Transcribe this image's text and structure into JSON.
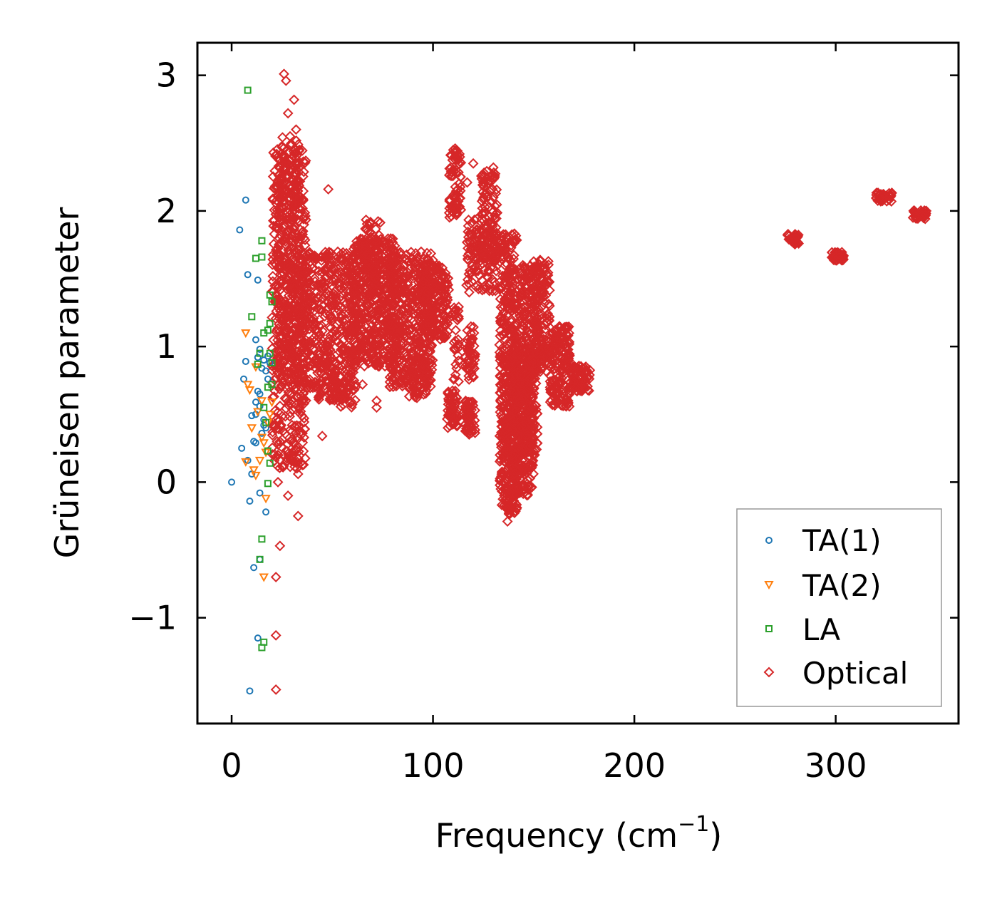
{
  "colors": {
    "ta1": "#1f77b4",
    "ta2": "#ff7f0e",
    "la": "#2ca02c",
    "optical": "#d62728",
    "axis": "#000000",
    "legend_border": "#999999"
  },
  "chart_data": {
    "type": "scatter",
    "title": "",
    "xlabel_main": "Frequency (cm",
    "xlabel_sup": "−1",
    "xlabel_close": ")",
    "ylabel": "Grüneisen parameter",
    "xlim": [
      -17,
      361
    ],
    "ylim": [
      -1.78,
      3.24
    ],
    "xticks": [
      0,
      100,
      200,
      300
    ],
    "xtick_labels": [
      "0",
      "100",
      "200",
      "300"
    ],
    "yticks": [
      -1,
      0,
      1,
      2,
      3
    ],
    "ytick_labels": [
      "−1",
      "0",
      "1",
      "2",
      "3"
    ],
    "legend_position": "lower-right",
    "series": [
      {
        "name": "TA(1)",
        "key": "ta1",
        "marker": "circle",
        "points": [
          [
            0,
            0
          ],
          [
            7,
            2.08
          ],
          [
            4,
            1.86
          ],
          [
            8,
            1.53
          ],
          [
            13,
            1.49
          ],
          [
            6,
            0.76
          ],
          [
            7,
            0.89
          ],
          [
            10,
            0.49
          ],
          [
            12,
            0.5
          ],
          [
            12,
            0.59
          ],
          [
            13,
            0.67
          ],
          [
            14,
            0.56
          ],
          [
            12,
            0.29
          ],
          [
            11,
            0.3
          ],
          [
            15,
            0.36
          ],
          [
            16,
            0.42
          ],
          [
            17,
            0.4
          ],
          [
            5,
            0.25
          ],
          [
            8,
            0.16
          ],
          [
            10,
            0.06
          ],
          [
            13,
            0.92
          ],
          [
            14,
            0.98
          ],
          [
            15,
            0.84
          ],
          [
            16,
            0.9
          ],
          [
            18,
            0.93
          ],
          [
            19,
            0.88
          ],
          [
            17,
            0.82
          ],
          [
            18,
            0.76
          ],
          [
            12,
            1.05
          ],
          [
            14,
            0.65
          ],
          [
            16,
            0.46
          ],
          [
            9,
            -0.14
          ],
          [
            14,
            -0.08
          ],
          [
            14,
            -0.57
          ],
          [
            11,
            -0.63
          ],
          [
            17,
            -0.22
          ],
          [
            13,
            -1.15
          ],
          [
            9,
            -1.54
          ]
        ]
      },
      {
        "name": "TA(2)",
        "key": "ta2",
        "marker": "triangle-down",
        "points": [
          [
            7,
            1.1
          ],
          [
            8,
            0.72
          ],
          [
            9,
            0.68
          ],
          [
            10,
            0.4
          ],
          [
            12,
            0.85
          ],
          [
            11,
            0.09
          ],
          [
            12,
            0.05
          ],
          [
            14,
            0.16
          ],
          [
            13,
            0.52
          ],
          [
            15,
            0.33
          ],
          [
            16,
            0.29
          ],
          [
            17,
            0.22
          ],
          [
            18,
            0.44
          ],
          [
            19,
            0.5
          ],
          [
            20,
            0.59
          ],
          [
            17,
            -0.12
          ],
          [
            16,
            -0.7
          ],
          [
            15,
            0.6
          ],
          [
            7,
            0.15
          ]
        ]
      },
      {
        "name": "LA",
        "key": "la",
        "marker": "square",
        "points": [
          [
            8,
            2.89
          ],
          [
            15,
            1.78
          ],
          [
            12,
            1.65
          ],
          [
            15,
            1.66
          ],
          [
            19,
            1.38
          ],
          [
            20,
            1.33
          ],
          [
            10,
            1.22
          ],
          [
            19,
            1.17
          ],
          [
            16,
            1.1
          ],
          [
            18,
            1.12
          ],
          [
            13,
            0.87
          ],
          [
            14,
            0.95
          ],
          [
            18,
            0.7
          ],
          [
            20,
            0.72
          ],
          [
            16,
            0.55
          ],
          [
            17,
            0.44
          ],
          [
            18,
            0.23
          ],
          [
            19,
            0.14
          ],
          [
            18,
            -0.01
          ],
          [
            15,
            -0.42
          ],
          [
            14,
            -0.57
          ],
          [
            15,
            -1.22
          ],
          [
            16,
            -1.18
          ],
          [
            19,
            0.95
          ],
          [
            20,
            0.88
          ]
        ]
      },
      {
        "name": "Optical",
        "key": "optical",
        "marker": "diamond",
        "points": [
          [
            26,
            3.01
          ],
          [
            27,
            2.96
          ],
          [
            31,
            2.82
          ],
          [
            28,
            2.72
          ],
          [
            32,
            2.6
          ],
          [
            29,
            2.55
          ],
          [
            25,
            2.47
          ],
          [
            33,
            2.49
          ],
          [
            48,
            2.16
          ],
          [
            45,
            0.34
          ],
          [
            33,
            0.13
          ],
          [
            33,
            0.06
          ],
          [
            33,
            -0.25
          ],
          [
            24,
            -0.47
          ],
          [
            22,
            -0.7
          ],
          [
            22,
            -1.13
          ],
          [
            22,
            -1.53
          ],
          [
            28,
            -0.1
          ],
          [
            30,
            0.42
          ],
          [
            36,
            0.58
          ],
          [
            26,
            0.2
          ],
          [
            24,
            0.3
          ],
          [
            23,
            0.0
          ],
          [
            72,
            0.55
          ],
          [
            72,
            0.6
          ],
          [
            65,
            0.72
          ],
          [
            100,
            1.58
          ],
          [
            118,
            1.4
          ],
          [
            105,
            1.52
          ],
          [
            128,
            1.41
          ],
          [
            112,
            1.98
          ],
          [
            111,
            2.46
          ],
          [
            117,
            2.21
          ],
          [
            120,
            2.35
          ],
          [
            130,
            2.32
          ],
          [
            137,
            -0.29
          ],
          [
            137,
            -0.2
          ],
          [
            156,
            1.05
          ],
          [
            160,
            0.98
          ],
          [
            166,
            0.62
          ]
        ],
        "clusters": [
          {
            "x": [
              20,
              37
            ],
            "y": [
              0.1,
              2.45
            ],
            "n": 520
          },
          {
            "x": [
              22,
              34
            ],
            "y": [
              0.8,
              2.55
            ],
            "n": 260
          },
          {
            "x": [
              34,
              62
            ],
            "y": [
              0.6,
              1.7
            ],
            "n": 520
          },
          {
            "x": [
              44,
              60
            ],
            "y": [
              0.55,
              0.95
            ],
            "n": 60
          },
          {
            "x": [
              60,
              82
            ],
            "y": [
              0.85,
              1.8
            ],
            "n": 480
          },
          {
            "x": [
              66,
              74
            ],
            "y": [
              1.4,
              1.95
            ],
            "n": 60
          },
          {
            "x": [
              78,
              100
            ],
            "y": [
              0.7,
              1.7
            ],
            "n": 460
          },
          {
            "x": [
              88,
              98
            ],
            "y": [
              0.62,
              0.9
            ],
            "n": 60
          },
          {
            "x": [
              95,
              108
            ],
            "y": [
              1.05,
              1.6
            ],
            "n": 180
          },
          {
            "x": [
              108,
              114
            ],
            "y": [
              1.95,
              2.45
            ],
            "n": 80
          },
          {
            "x": [
              107,
              112
            ],
            "y": [
              0.4,
              0.68
            ],
            "n": 60
          },
          {
            "x": [
              116,
              121
            ],
            "y": [
              0.35,
              0.6
            ],
            "n": 60
          },
          {
            "x": [
              116,
              121
            ],
            "y": [
              0.75,
              1.15
            ],
            "n": 50
          },
          {
            "x": [
              110,
              113
            ],
            "y": [
              0.7,
              1.3
            ],
            "n": 30
          },
          {
            "x": [
              116,
              122
            ],
            "y": [
              1.45,
              1.95
            ],
            "n": 50
          },
          {
            "x": [
              124,
              132
            ],
            "y": [
              1.65,
              2.3
            ],
            "n": 120
          },
          {
            "x": [
              121,
              132
            ],
            "y": [
              1.4,
              1.75
            ],
            "n": 60
          },
          {
            "x": [
              133,
              142
            ],
            "y": [
              -0.25,
              1.85
            ],
            "n": 460
          },
          {
            "x": [
              138,
              150
            ],
            "y": [
              -0.1,
              1.0
            ],
            "n": 380
          },
          {
            "x": [
              143,
              152
            ],
            "y": [
              0.2,
              1.6
            ],
            "n": 260
          },
          {
            "x": [
              150,
              158
            ],
            "y": [
              0.8,
              1.65
            ],
            "n": 160
          },
          {
            "x": [
              158,
              168
            ],
            "y": [
              0.55,
              1.15
            ],
            "n": 180
          },
          {
            "x": [
              168,
              178
            ],
            "y": [
              0.67,
              0.86
            ],
            "n": 80
          },
          {
            "x": [
              276,
              282
            ],
            "y": [
              1.75,
              1.83
            ],
            "n": 40
          },
          {
            "x": [
              298,
              304
            ],
            "y": [
              1.63,
              1.7
            ],
            "n": 40
          },
          {
            "x": [
              320,
              328
            ],
            "y": [
              2.07,
              2.14
            ],
            "n": 40
          },
          {
            "x": [
              338,
              345
            ],
            "y": [
              1.94,
              2.01
            ],
            "n": 40
          }
        ]
      }
    ]
  }
}
